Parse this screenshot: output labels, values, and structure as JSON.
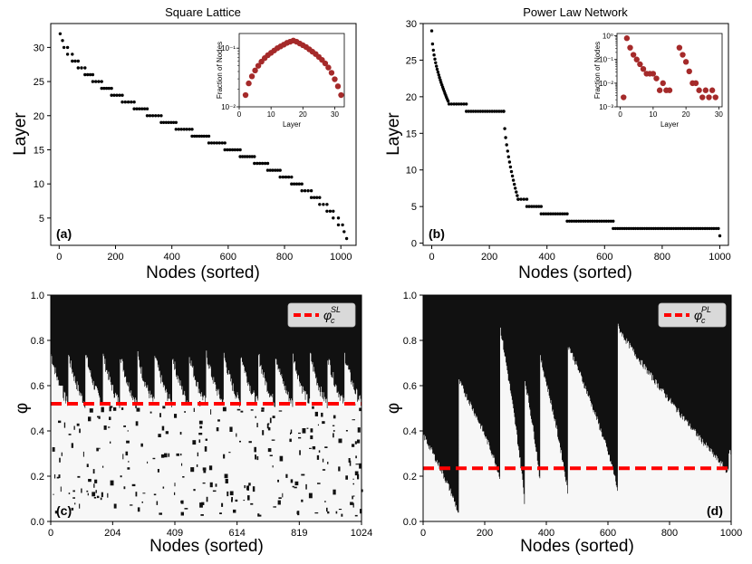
{
  "colors": {
    "points": "#000000",
    "inset_points": "#a52a2a",
    "critical_line": "#ff0000",
    "heatmap_dark": "#111111",
    "heatmap_light": "#f7f7f7"
  },
  "chart_data": [
    {
      "id": "a",
      "type": "scatter",
      "title": "Square Lattice",
      "panel_label": "(a)",
      "xlabel": "Nodes (sorted)",
      "ylabel": "Layer",
      "xlim": [
        -30,
        1054
      ],
      "ylim": [
        1,
        33.5
      ],
      "xticks": [
        0,
        200,
        400,
        600,
        800,
        1000
      ],
      "yticks": [
        5,
        10,
        15,
        20,
        25,
        30
      ],
      "n_nodes": 1024,
      "layers": [
        32,
        2
      ],
      "inset": {
        "type": "scatter",
        "xlabel": "Layer",
        "ylabel": "Fraction of Nodes",
        "yscale": "log",
        "xlim": [
          0,
          33
        ],
        "xticks": [
          0,
          10,
          20,
          30
        ],
        "ylim_exp": [
          -2,
          -0.75
        ],
        "ytick_labels": [
          "10⁻¹",
          "10⁻²"
        ],
        "x": [
          2,
          3,
          4,
          5,
          6,
          7,
          8,
          9,
          10,
          11,
          12,
          13,
          14,
          15,
          16,
          17,
          18,
          19,
          20,
          21,
          22,
          23,
          24,
          25,
          26,
          27,
          28,
          29,
          30,
          31,
          32
        ],
        "y_exp": [
          -1.8,
          -1.6,
          -1.48,
          -1.38,
          -1.3,
          -1.23,
          -1.17,
          -1.12,
          -1.08,
          -1.04,
          -1.0,
          -0.97,
          -0.94,
          -0.91,
          -0.89,
          -0.87,
          -0.89,
          -0.92,
          -0.95,
          -0.98,
          -1.02,
          -1.06,
          -1.1,
          -1.15,
          -1.2,
          -1.26,
          -1.33,
          -1.42,
          -1.53,
          -1.65,
          -1.8
        ]
      }
    },
    {
      "id": "b",
      "type": "scatter",
      "title": "Power Law Network",
      "panel_label": "(b)",
      "xlabel": "Nodes (sorted)",
      "ylabel": "Layer",
      "xlim": [
        -30,
        1030
      ],
      "ylim": [
        -0.3,
        30
      ],
      "xticks": [
        0,
        200,
        400,
        600,
        800,
        1000
      ],
      "yticks": [
        0,
        5,
        10,
        15,
        20,
        25,
        30
      ],
      "n_nodes": 1000,
      "segments": [
        {
          "layer": 19,
          "x0": 60,
          "x1": 120
        },
        {
          "layer": 18,
          "x0": 120,
          "x1": 250
        },
        {
          "layer": 6,
          "x0": 300,
          "x1": 330
        },
        {
          "layer": 5,
          "x0": 330,
          "x1": 380
        },
        {
          "layer": 4,
          "x0": 380,
          "x1": 470
        },
        {
          "layer": 3,
          "x0": 470,
          "x1": 630
        },
        {
          "layer": 2,
          "x0": 630,
          "x1": 995
        }
      ],
      "inset": {
        "type": "scatter",
        "xlabel": "Layer",
        "ylabel": "Fraction of Nodes",
        "yscale": "log",
        "xlim": [
          -1,
          31
        ],
        "xticks": [
          0,
          10,
          20,
          30
        ],
        "ylim_exp": [
          -3,
          0.1
        ],
        "ytick_labels": [
          "10⁰",
          "10⁻¹",
          "10⁻²",
          "10⁻³"
        ],
        "x": [
          1,
          2,
          3,
          4,
          5,
          6,
          7,
          8,
          9,
          10,
          11,
          12,
          13,
          14,
          15,
          18,
          19,
          20,
          21,
          22,
          23,
          24,
          25,
          26,
          27,
          28,
          29
        ],
        "y_exp": [
          -2.6,
          -0.1,
          -0.5,
          -0.8,
          -1.0,
          -1.2,
          -1.4,
          -1.6,
          -1.6,
          -1.6,
          -1.8,
          -2.3,
          -2.0,
          -2.3,
          -2.3,
          -0.5,
          -0.8,
          -1.1,
          -1.5,
          -2.0,
          -2.0,
          -2.3,
          -2.6,
          -2.3,
          -2.6,
          -2.3,
          -2.6
        ]
      }
    },
    {
      "id": "c",
      "type": "heatmap",
      "panel_label": "(c)",
      "xlabel": "Nodes (sorted)",
      "ylabel": "φ",
      "xlim": [
        0,
        1024
      ],
      "ylim": [
        0,
        1
      ],
      "xticks": [
        0,
        204,
        409,
        614,
        819,
        1024
      ],
      "yticks": [
        0.0,
        0.2,
        0.4,
        0.6,
        0.8,
        1.0
      ],
      "critical": 0.52,
      "legend": {
        "symbol": "φ",
        "sub": "c",
        "sup": "SL",
        "position": "top-right"
      }
    },
    {
      "id": "d",
      "type": "heatmap",
      "panel_label": "(d)",
      "xlabel": "Nodes (sorted)",
      "ylabel": "φ",
      "xlim": [
        0,
        1000
      ],
      "ylim": [
        0,
        1
      ],
      "xticks": [
        0,
        200,
        400,
        600,
        800,
        1000
      ],
      "yticks": [
        0.0,
        0.2,
        0.4,
        0.6,
        0.8,
        1.0
      ],
      "critical": 0.235,
      "legend": {
        "symbol": "φ",
        "sub": "c",
        "sup": "PL",
        "position": "top-right"
      }
    }
  ]
}
